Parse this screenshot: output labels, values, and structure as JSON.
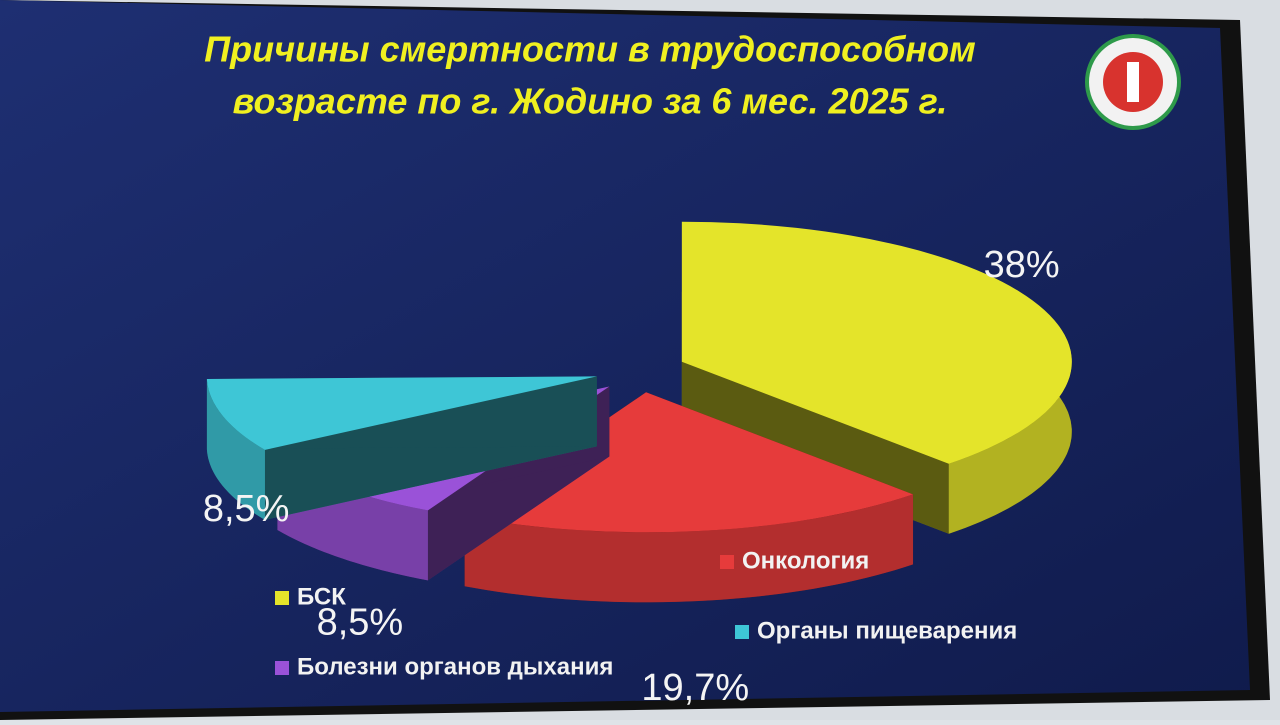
{
  "chart_data": {
    "type": "pie",
    "title": [
      "Причины смертности в  трудоспособном",
      "возрасте по г. Жодино за 6 мес. 2025 г."
    ],
    "categories": [
      "БСК",
      "Онкология",
      "Болезни органов дыхания",
      "Органы пищеварения"
    ],
    "values": [
      38,
      19.7,
      8.5,
      8.5
    ],
    "value_labels": [
      "38%",
      "19,7%",
      "8,5%",
      "8,5%"
    ],
    "colors": [
      "#e4e42a",
      "#e63b3b",
      "#9a52d8",
      "#3ec6d6"
    ]
  }
}
